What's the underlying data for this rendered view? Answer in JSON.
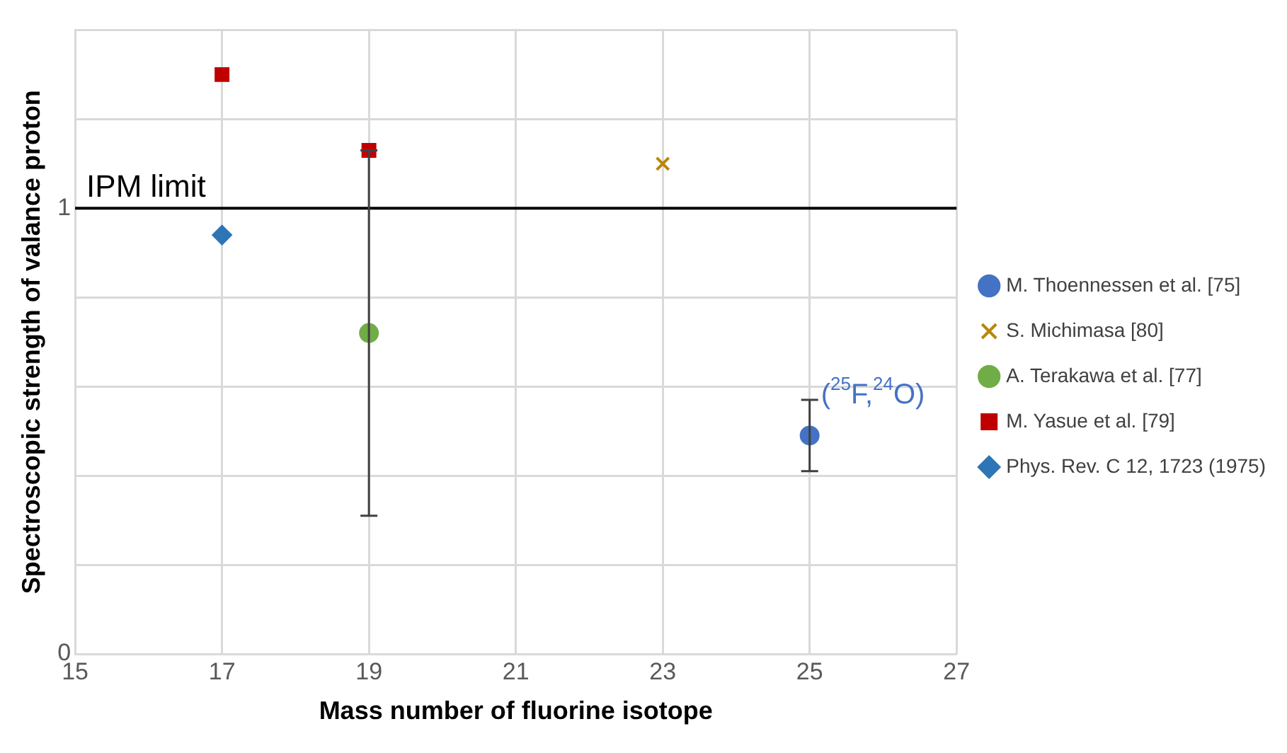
{
  "chart_data": {
    "type": "scatter",
    "xlabel": "Mass number of fluorine isotope",
    "ylabel": "Spectroscopic strength of valance proton",
    "xlim": [
      15,
      27
    ],
    "xticks": [
      15,
      17,
      19,
      21,
      23,
      25,
      27
    ],
    "ylim": [
      0,
      1.4
    ],
    "yticks": [
      0,
      {
        "value": 0.2,
        "label": null
      },
      {
        "value": 0.4,
        "label": null
      },
      {
        "value": 0.6,
        "label": null
      },
      {
        "value": 0.8,
        "label": null
      },
      1,
      {
        "value": 1.2,
        "label": null
      },
      {
        "value": 1.4,
        "label": null
      }
    ],
    "grid": true,
    "legend": "right",
    "series": [
      {
        "name": "M. Thoennessen et al. [75]",
        "color": "#4472c4",
        "marker": "circle",
        "x": [
          25
        ],
        "values": [
          0.49
        ],
        "errors": [
          [
            0.41,
            0.57
          ]
        ]
      },
      {
        "name": "S. Michimasa [80]",
        "color": "#b8860b",
        "marker": "cross",
        "x": [
          23
        ],
        "values": [
          1.1
        ]
      },
      {
        "name": "A. Terakawa et al. [77]",
        "color": "#70ad47",
        "marker": "circle",
        "x": [
          19
        ],
        "values": [
          0.72
        ],
        "errors": [
          [
            0.31,
            1.13
          ]
        ]
      },
      {
        "name": "M. Yasue et al. [79]",
        "color": "#c00000",
        "marker": "square",
        "x": [
          17,
          19
        ],
        "values": [
          1.3,
          1.13
        ]
      },
      {
        "name": "Phys. Rev. C 12, 1723 (1975)",
        "color": "#2e75b6",
        "marker": "diamond",
        "x": [
          17
        ],
        "values": [
          0.94
        ]
      }
    ],
    "ref_lines": [
      {
        "axis": "y",
        "value": 1,
        "label": "IPM limit",
        "color": "#000000"
      }
    ],
    "annotations": [
      {
        "text": "($^{25}$F,$^{24}$O)",
        "x": 25,
        "y": 0.49
      }
    ]
  }
}
